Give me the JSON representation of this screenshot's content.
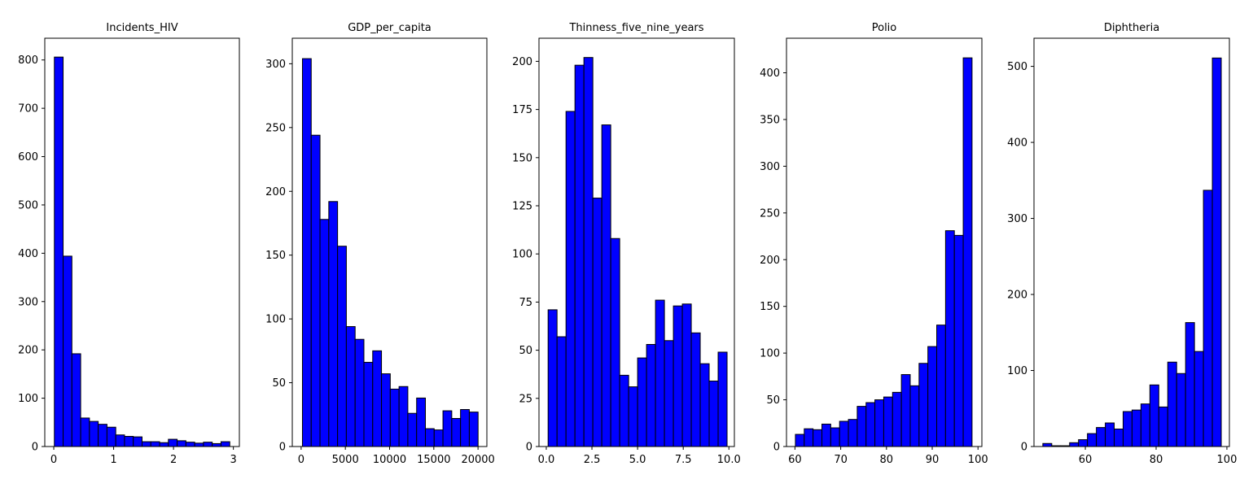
{
  "chart_data": [
    {
      "type": "bar",
      "title": "Incidents_HIV",
      "xlim": [
        -0.15,
        3.1
      ],
      "ylim": [
        0,
        845
      ],
      "xticks": [
        0,
        1,
        2,
        3
      ],
      "xtick_labels": [
        "0",
        "1",
        "2",
        "3"
      ],
      "yticks": [
        0,
        100,
        200,
        300,
        400,
        500,
        600,
        700,
        800
      ],
      "ytick_labels": [
        "0",
        "100",
        "200",
        "300",
        "400",
        "500",
        "600",
        "700",
        "800"
      ],
      "bin_edges": [
        0.01,
        0.1565,
        0.303,
        0.4495,
        0.596,
        0.7425,
        0.889,
        1.0355,
        1.182,
        1.3285,
        1.475,
        1.6215,
        1.768,
        1.9145,
        2.061,
        2.2075,
        2.354,
        2.5005,
        2.647,
        2.7935,
        2.94
      ],
      "values": [
        806,
        394,
        192,
        59,
        52,
        46,
        40,
        24,
        21,
        20,
        10,
        10,
        8,
        15,
        12,
        9,
        7,
        9,
        6,
        10
      ]
    },
    {
      "type": "bar",
      "title": "GDP_per_capita",
      "xlim": [
        -1000,
        21000
      ],
      "ylim": [
        0,
        320
      ],
      "xticks": [
        0,
        5000,
        10000,
        15000,
        20000
      ],
      "xtick_labels": [
        "0",
        "5000",
        "10000",
        "15000",
        "20000"
      ],
      "yticks": [
        0,
        50,
        100,
        150,
        200,
        250,
        300
      ],
      "ytick_labels": [
        "0",
        "50",
        "100",
        "150",
        "200",
        "250",
        "300"
      ],
      "bin_edges": [
        148,
        1141,
        2134,
        3127,
        4120,
        5113,
        6106,
        7099,
        8092,
        9085,
        10078,
        11071,
        12064,
        13057,
        14050,
        15043,
        16036,
        17029,
        18022,
        19015,
        20008
      ],
      "values": [
        304,
        244,
        178,
        192,
        157,
        94,
        84,
        66,
        75,
        57,
        45,
        47,
        26,
        38,
        14,
        13,
        28,
        22,
        29,
        27
      ]
    },
    {
      "type": "bar",
      "title": "Thinness_five_nine_years",
      "xlim": [
        -0.4,
        10.3
      ],
      "ylim": [
        0,
        212
      ],
      "xticks": [
        0,
        2.5,
        5,
        7.5,
        10
      ],
      "xtick_labels": [
        "0.0",
        "2.5",
        "5.0",
        "7.5",
        "10.0"
      ],
      "yticks": [
        0,
        25,
        50,
        75,
        100,
        125,
        150,
        175,
        200
      ],
      "ytick_labels": [
        "0",
        "25",
        "50",
        "75",
        "100",
        "125",
        "150",
        "175",
        "200"
      ],
      "bin_edges": [
        0.1,
        0.59,
        1.08,
        1.57,
        2.06,
        2.55,
        3.04,
        3.53,
        4.02,
        4.51,
        5.0,
        5.49,
        5.98,
        6.47,
        6.96,
        7.45,
        7.94,
        8.43,
        8.92,
        9.41,
        9.9
      ],
      "values": [
        71,
        57,
        174,
        198,
        202,
        129,
        167,
        108,
        37,
        31,
        46,
        53,
        76,
        55,
        73,
        74,
        59,
        43,
        34,
        49
      ]
    },
    {
      "type": "bar",
      "title": "Polio",
      "xlim": [
        58.15,
        100.85
      ],
      "ylim": [
        0,
        437
      ],
      "xticks": [
        60,
        70,
        80,
        90,
        100
      ],
      "xtick_labels": [
        "60",
        "70",
        "80",
        "90",
        "100"
      ],
      "yticks": [
        0,
        50,
        100,
        150,
        200,
        250,
        300,
        350,
        400
      ],
      "ytick_labels": [
        "0",
        "50",
        "100",
        "150",
        "200",
        "250",
        "300",
        "350",
        "400"
      ],
      "bin_edges": [
        60.1,
        62.03,
        63.96,
        65.89,
        67.82,
        69.75,
        71.68,
        73.61,
        75.54,
        77.47,
        79.4,
        81.33,
        83.26,
        85.19,
        87.12,
        89.05,
        90.98,
        92.91,
        94.84,
        96.77,
        98.7
      ],
      "values": [
        13,
        19,
        18,
        24,
        20,
        27,
        29,
        43,
        47,
        50,
        53,
        58,
        77,
        65,
        89,
        107,
        130,
        231,
        226,
        416
      ]
    },
    {
      "type": "bar",
      "title": "Diphtheria",
      "xlim": [
        45.5,
        100.7
      ],
      "ylim": [
        0,
        537
      ],
      "xticks": [
        60,
        80,
        100
      ],
      "xtick_labels": [
        "60",
        "80",
        "100"
      ],
      "yticks": [
        0,
        100,
        200,
        300,
        400,
        500
      ],
      "ytick_labels": [
        "0",
        "100",
        "200",
        "300",
        "400",
        "500"
      ],
      "bin_edges": [
        48,
        50.52,
        53.04,
        55.56,
        58.08,
        60.6,
        63.12,
        65.64,
        68.16,
        70.68,
        73.2,
        75.72,
        78.24,
        80.76,
        83.28,
        85.8,
        88.32,
        90.84,
        93.36,
        95.88,
        98.4
      ],
      "values": [
        4,
        1,
        1,
        5,
        9,
        17,
        25,
        31,
        23,
        46,
        48,
        56,
        81,
        52,
        111,
        96,
        163,
        125,
        337,
        511
      ]
    }
  ],
  "style": {
    "bar_fill": "#0000ff",
    "bar_edge": "#000000"
  }
}
